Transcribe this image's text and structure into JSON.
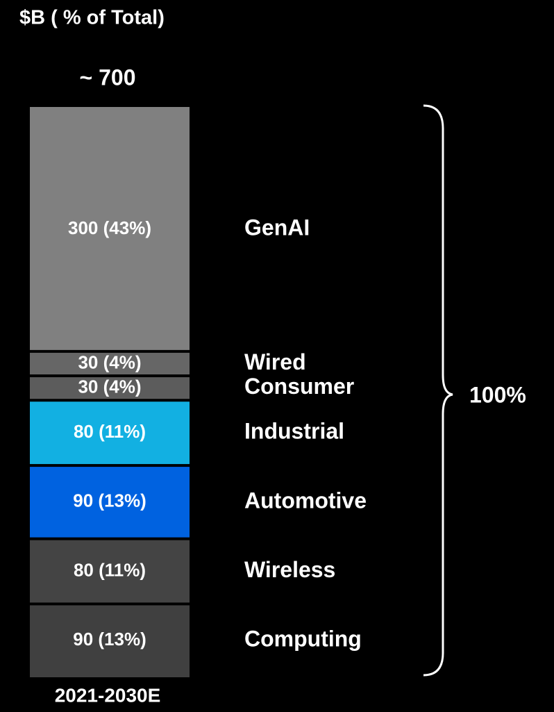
{
  "chart_data": {
    "type": "bar",
    "stacked": true,
    "title": "$B ( % of Total)",
    "total_label": "~ 700",
    "share_label": "100%",
    "categories": [
      "2021-2030E"
    ],
    "ylim": [
      0,
      700
    ],
    "series": [
      {
        "name": "Computing",
        "color": "#404040",
        "label_color": "#ffffff",
        "values": [
          90
        ],
        "value_labels": [
          "90 (13%)"
        ]
      },
      {
        "name": "Wireless",
        "color": "#444444",
        "label_color": "#ffffff",
        "values": [
          80
        ],
        "value_labels": [
          "80 (11%)"
        ]
      },
      {
        "name": "Automotive",
        "color": "#0062e0",
        "label_color": "#4a8ef2",
        "values": [
          90
        ],
        "value_labels": [
          "90 (13%)"
        ]
      },
      {
        "name": "Industrial",
        "color": "#12b0e2",
        "label_color": "#5cc9ef",
        "values": [
          80
        ],
        "value_labels": [
          "80 (11%)"
        ]
      },
      {
        "name": "Consumer",
        "color": "#5c5c5c",
        "label_color": "#ffffff",
        "values": [
          30
        ],
        "value_labels": [
          "30 (4%)"
        ]
      },
      {
        "name": "Wired",
        "color": "#666666",
        "label_color": "#ffffff",
        "values": [
          30
        ],
        "value_labels": [
          "30 (4%)"
        ]
      },
      {
        "name": "GenAI",
        "color": "#808080",
        "label_color": "#ffffff",
        "values": [
          300
        ],
        "value_labels": [
          "300 (43%)"
        ]
      }
    ]
  }
}
